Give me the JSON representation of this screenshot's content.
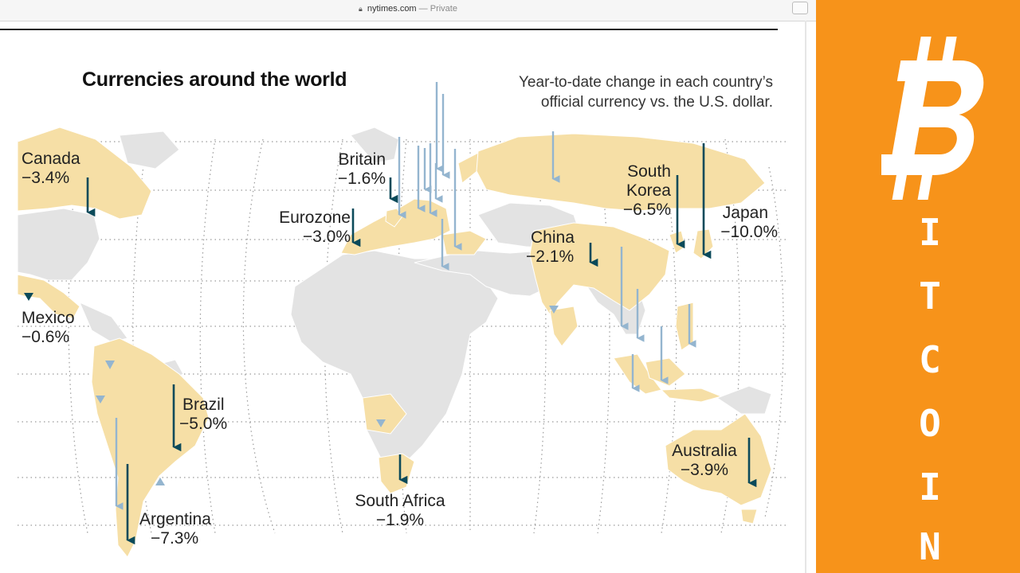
{
  "browser": {
    "domain": "nytimes.com",
    "mode": "Private",
    "separator": "—"
  },
  "title": "Currencies around the world",
  "subtitle": [
    "Year-to-date change in each country’s",
    "official currency vs. the U.S. dollar."
  ],
  "countries": [
    {
      "id": "canada",
      "name": "Canada",
      "change": "−3.4%",
      "value": -3.4
    },
    {
      "id": "britain",
      "name": "Britain",
      "change": "−1.6%",
      "value": -1.6
    },
    {
      "id": "eurozone",
      "name": "Eurozone",
      "change": "−3.0%",
      "value": -3.0
    },
    {
      "id": "mexico",
      "name": "Mexico",
      "change": "−0.6%",
      "value": -0.6
    },
    {
      "id": "brazil",
      "name": "Brazil",
      "change": "−5.0%",
      "value": -5.0
    },
    {
      "id": "argentina",
      "name": "Argentina",
      "change": "−7.3%",
      "value": -7.3
    },
    {
      "id": "south_africa",
      "name": "South Africa",
      "change": "−1.9%",
      "value": -1.9
    },
    {
      "id": "china",
      "name": "China",
      "change": "−2.1%",
      "value": -2.1
    },
    {
      "id": "south_korea",
      "name": [
        "South",
        "Korea"
      ],
      "change": "−6.5%",
      "value": -6.5
    },
    {
      "id": "japan",
      "name": "Japan",
      "change": "−10.0%",
      "value": -10.0
    },
    {
      "id": "australia",
      "name": "Australia",
      "change": "−3.9%",
      "value": -3.9
    }
  ],
  "colors": {
    "tracked_land": "#f6dfa6",
    "other_land": "#e3e3e3",
    "labeled_arrow": "#0b4a5a",
    "other_arrow": "#94b5cf",
    "panel": "#f7931a"
  },
  "sidebar": {
    "letters": [
      "I",
      "T",
      "C",
      "O",
      "I",
      "N"
    ]
  }
}
